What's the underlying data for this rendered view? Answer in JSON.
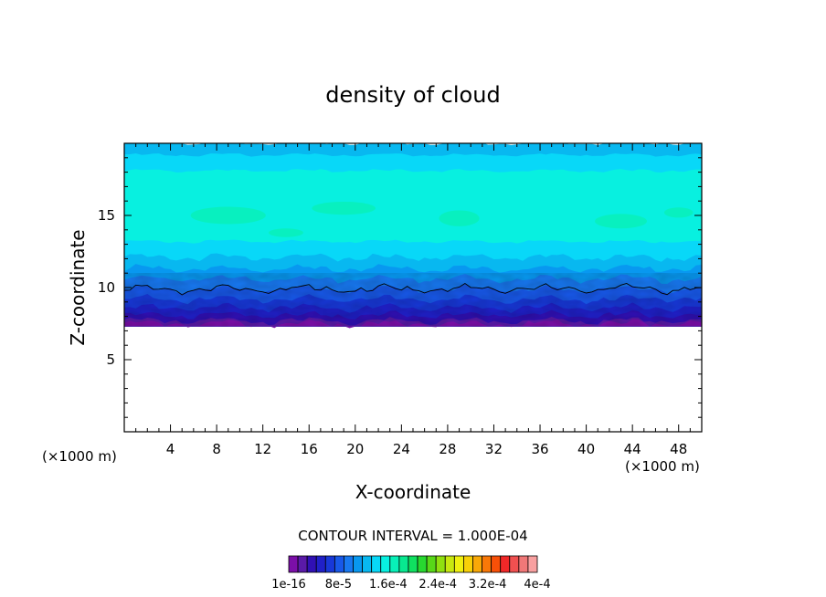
{
  "chart_data": {
    "type": "heatmap",
    "title": "density of cloud",
    "xlabel": "X-coordinate",
    "ylabel": "Z-coordinate",
    "x_unit": "(×1000 m)",
    "y_unit": "(×1000 m)",
    "xlim": [
      0,
      50
    ],
    "ylim": [
      0,
      20
    ],
    "xticks": [
      4,
      8,
      12,
      16,
      20,
      24,
      28,
      32,
      36,
      40,
      44,
      48
    ],
    "yticks": [
      5,
      10,
      15
    ],
    "contour_interval_label": "CONTOUR INTERVAL = 1.000E-04",
    "colorbar": {
      "colors": [
        "#7b0fa8",
        "#5a1aa8",
        "#3010b4",
        "#2020c8",
        "#1838d8",
        "#1858e8",
        "#1878f0",
        "#0898f0",
        "#08b8f0",
        "#08d8f8",
        "#08f0e0",
        "#08f0b8",
        "#08e890",
        "#10e060",
        "#28d830",
        "#58d818",
        "#90e010",
        "#c8e810",
        "#f0f010",
        "#f8d008",
        "#f8a808",
        "#f87808",
        "#f85008",
        "#f02828",
        "#f05050",
        "#f07878",
        "#f8a0a0"
      ],
      "tick_labels": [
        "1e-16",
        "8e-5",
        "1.6e-4",
        "2.4e-4",
        "3.2e-4",
        "4e-4"
      ]
    }
  }
}
